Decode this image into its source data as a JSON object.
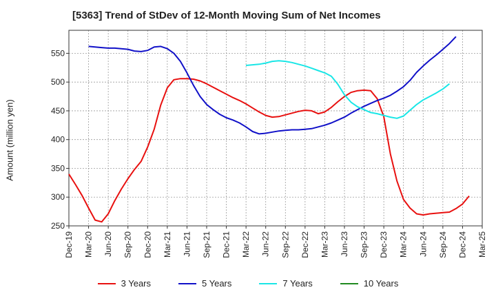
{
  "chart_data": {
    "type": "line",
    "title": "[5363]  Trend of StDev of 12-Month Moving Sum of Net Incomes",
    "xlabel": "",
    "ylabel": "Amount (million yen)",
    "ylim": [
      250,
      590
    ],
    "yticks": [
      250,
      300,
      350,
      400,
      450,
      500,
      550
    ],
    "xtick_labels": [
      "Dec-19",
      "Mar-20",
      "Jun-20",
      "Sep-20",
      "Dec-20",
      "Mar-21",
      "Jun-21",
      "Sep-21",
      "Dec-21",
      "Mar-22",
      "Jun-22",
      "Sep-22",
      "Dec-22",
      "Mar-23",
      "Jun-23",
      "Sep-23",
      "Dec-23",
      "Mar-24",
      "Jun-24",
      "Sep-24",
      "Dec-24",
      "Mar-25"
    ],
    "grid": true,
    "legend_position": "bottom",
    "series": [
      {
        "name": "3 Years",
        "color": "#e8100f",
        "start_index": 0,
        "values": [
          340,
          322,
          303,
          281,
          260,
          257,
          271,
          294,
          314,
          332,
          348,
          362,
          387,
          418,
          460,
          490,
          504,
          506,
          506,
          505,
          502,
          497,
          491,
          485,
          479,
          473,
          468,
          462,
          455,
          448,
          442,
          439,
          440,
          443,
          446,
          449,
          451,
          450,
          445,
          448,
          456,
          466,
          475,
          482,
          485,
          486,
          485,
          471,
          440,
          375,
          328,
          296,
          281,
          271,
          269,
          271,
          272,
          273,
          274,
          280,
          288,
          302
        ]
      },
      {
        "name": "5 Years",
        "color": "#1010c8",
        "start_index": 3,
        "values": [
          562,
          561,
          560,
          559,
          559,
          558,
          557,
          554,
          553,
          555,
          561,
          562,
          558,
          550,
          536,
          516,
          494,
          475,
          461,
          452,
          444,
          438,
          434,
          429,
          422,
          414,
          410,
          411,
          413,
          415,
          416,
          417,
          417,
          418,
          419,
          422,
          425,
          429,
          434,
          439,
          446,
          452,
          458,
          463,
          468,
          472,
          477,
          484,
          492,
          503,
          517,
          528,
          538,
          547,
          557,
          567,
          579
        ]
      },
      {
        "name": "7 Years",
        "color": "#19e6e6",
        "start_index": 27,
        "values": [
          529,
          530,
          531,
          533,
          536,
          537,
          536,
          534,
          531,
          528,
          524,
          520,
          516,
          510,
          496,
          478,
          465,
          457,
          452,
          447,
          445,
          442,
          439,
          437,
          441,
          451,
          461,
          469,
          475,
          481,
          488,
          497
        ]
      },
      {
        "name": "10 Years",
        "color": "#1f8a1f",
        "start_index": 0,
        "values": []
      }
    ]
  }
}
